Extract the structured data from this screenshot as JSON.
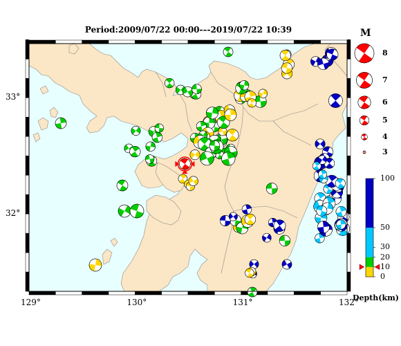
{
  "title": "Period:2009/07/22 00:00-–-2019/07/22 10:39",
  "colors": {
    "sea": "#e8ffff",
    "land": "#fbe6c5",
    "border": "#8c8c8c",
    "mechanism_red": "#ff0000",
    "depth_0_10": "#ffd700",
    "depth_10_20": "#00cc00",
    "depth_20_50": "#00c8ff",
    "depth_50_100": "#0000c0"
  },
  "map": {
    "lon_range": [
      129,
      132
    ],
    "lat_range": [
      31.3333,
      33.4667
    ],
    "lon_ticks": [
      {
        "value": 129,
        "label": "129°"
      },
      {
        "value": 130,
        "label": "130°"
      },
      {
        "value": 131,
        "label": "131°"
      },
      {
        "value": 132,
        "label": "132°"
      }
    ],
    "lat_ticks": [
      {
        "value": 33,
        "label": "33°"
      },
      {
        "value": 32,
        "label": "32°"
      }
    ],
    "main_event": {
      "lon": 130.47,
      "lat": 32.43,
      "magnitude": 5
    }
  },
  "magnitude_legend": {
    "title": "M",
    "items": [
      {
        "label": "8",
        "m": 8
      },
      {
        "label": "7",
        "m": 7
      },
      {
        "label": "6",
        "m": 6
      },
      {
        "label": "5",
        "m": 5
      },
      {
        "label": "4",
        "m": 4
      },
      {
        "label": "3",
        "m": 3
      }
    ]
  },
  "depth_legend": {
    "unit": "Depth(km)",
    "ticks": [
      {
        "label": "100",
        "value": 100
      },
      {
        "label": "50",
        "value": 50
      },
      {
        "label": "30",
        "value": 30
      },
      {
        "label": "20",
        "value": 20
      },
      {
        "label": "10",
        "value": 10
      },
      {
        "label": "0",
        "value": 0
      }
    ],
    "marker_depth": 10
  }
}
